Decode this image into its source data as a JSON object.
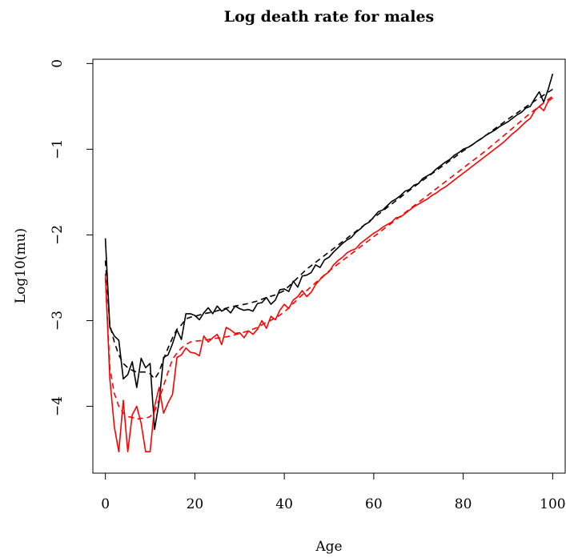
{
  "chart_data": {
    "type": "line",
    "title": "Log death rate for males",
    "xlabel": "Age",
    "ylabel": "Log10(mu)",
    "xlim": [
      -2.8,
      102.8
    ],
    "ylim": [
      -4.78,
      0.05
    ],
    "xticks": [
      0,
      20,
      40,
      60,
      80,
      100
    ],
    "yticks": [
      0,
      -1,
      -2,
      -3,
      -4
    ],
    "grid": false,
    "legend": "none",
    "series": [
      {
        "color": "#000000",
        "linestyle": "solid",
        "x": [
          0,
          1,
          2,
          3,
          4,
          5,
          6,
          7,
          8,
          9,
          10,
          11,
          12,
          13,
          14,
          15,
          16,
          17,
          18,
          19,
          20,
          21,
          22,
          23,
          24,
          25,
          26,
          27,
          28,
          29,
          30,
          31,
          32,
          33,
          34,
          35,
          36,
          37,
          38,
          39,
          40,
          41,
          42,
          43,
          44,
          45,
          46,
          47,
          48,
          49,
          50,
          51,
          52,
          53,
          54,
          55,
          56,
          57,
          58,
          59,
          60,
          61,
          62,
          63,
          64,
          65,
          66,
          67,
          68,
          69,
          70,
          71,
          72,
          73,
          74,
          75,
          76,
          77,
          78,
          79,
          80,
          81,
          82,
          83,
          84,
          85,
          86,
          87,
          88,
          89,
          90,
          91,
          92,
          93,
          94,
          95,
          96,
          97,
          98,
          99,
          100
        ],
        "y": [
          -2.04,
          -3.08,
          -3.18,
          -3.23,
          -3.68,
          -3.63,
          -3.48,
          -3.78,
          -3.44,
          -3.55,
          -3.5,
          -4.27,
          -3.95,
          -3.43,
          -3.4,
          -3.27,
          -3.11,
          -3.22,
          -2.92,
          -2.92,
          -2.94,
          -2.99,
          -2.91,
          -2.85,
          -2.92,
          -2.83,
          -2.89,
          -2.86,
          -2.91,
          -2.83,
          -2.86,
          -2.88,
          -2.87,
          -2.89,
          -2.8,
          -2.79,
          -2.73,
          -2.81,
          -2.76,
          -2.64,
          -2.63,
          -2.66,
          -2.54,
          -2.61,
          -2.48,
          -2.47,
          -2.44,
          -2.35,
          -2.38,
          -2.29,
          -2.26,
          -2.2,
          -2.15,
          -2.1,
          -2.06,
          -2.03,
          -1.97,
          -1.93,
          -1.88,
          -1.85,
          -1.79,
          -1.73,
          -1.71,
          -1.66,
          -1.61,
          -1.58,
          -1.54,
          -1.49,
          -1.47,
          -1.42,
          -1.4,
          -1.34,
          -1.31,
          -1.28,
          -1.23,
          -1.19,
          -1.15,
          -1.12,
          -1.07,
          -1.04,
          -1.0,
          -0.98,
          -0.95,
          -0.91,
          -0.88,
          -0.84,
          -0.81,
          -0.78,
          -0.74,
          -0.71,
          -0.68,
          -0.64,
          -0.6,
          -0.57,
          -0.52,
          -0.5,
          -0.41,
          -0.33,
          -0.45,
          -0.3,
          -0.12
        ]
      },
      {
        "color": "#000000",
        "linestyle": "dashed",
        "x": [
          0,
          1,
          2,
          3,
          4,
          5,
          6,
          7,
          8,
          9,
          10,
          11,
          12,
          13,
          14,
          15,
          16,
          17,
          18,
          19,
          20,
          22,
          24,
          26,
          28,
          30,
          32,
          34,
          36,
          38,
          40,
          45,
          50,
          55,
          60,
          65,
          70,
          75,
          80,
          85,
          90,
          95,
          100
        ],
        "y": [
          -2.3,
          -3.05,
          -3.25,
          -3.4,
          -3.5,
          -3.55,
          -3.58,
          -3.6,
          -3.6,
          -3.6,
          -3.62,
          -3.68,
          -3.6,
          -3.45,
          -3.32,
          -3.2,
          -3.1,
          -3.05,
          -2.98,
          -2.96,
          -2.95,
          -2.92,
          -2.9,
          -2.87,
          -2.84,
          -2.82,
          -2.8,
          -2.77,
          -2.73,
          -2.7,
          -2.65,
          -2.4,
          -2.2,
          -2.0,
          -1.8,
          -1.6,
          -1.4,
          -1.21,
          -1.02,
          -0.84,
          -0.65,
          -0.47,
          -0.3
        ]
      },
      {
        "color": "#ff0000",
        "linestyle": "solid",
        "x": [
          0,
          1,
          2,
          3,
          4,
          5,
          6,
          7,
          8,
          9,
          10,
          11,
          12,
          13,
          14,
          15,
          16,
          17,
          18,
          19,
          20,
          21,
          22,
          23,
          24,
          25,
          26,
          27,
          28,
          29,
          30,
          31,
          32,
          33,
          34,
          35,
          36,
          37,
          38,
          39,
          40,
          41,
          42,
          43,
          44,
          45,
          46,
          47,
          48,
          49,
          50,
          51,
          52,
          53,
          54,
          55,
          56,
          57,
          58,
          59,
          60,
          61,
          62,
          63,
          64,
          65,
          66,
          67,
          68,
          69,
          70,
          71,
          72,
          73,
          74,
          75,
          76,
          77,
          78,
          79,
          80,
          81,
          82,
          83,
          84,
          85,
          86,
          87,
          88,
          89,
          90,
          91,
          92,
          93,
          94,
          95,
          96,
          97,
          98,
          99,
          100
        ],
        "y": [
          -2.45,
          -3.68,
          -4.24,
          -4.53,
          -3.93,
          -4.53,
          -4.1,
          -4.0,
          -4.2,
          -4.53,
          -4.53,
          -4.0,
          -3.78,
          -4.08,
          -3.96,
          -3.86,
          -3.43,
          -3.4,
          -3.32,
          -3.37,
          -3.38,
          -3.41,
          -3.18,
          -3.25,
          -3.2,
          -3.16,
          -3.28,
          -3.08,
          -3.11,
          -3.15,
          -3.14,
          -3.2,
          -3.12,
          -3.16,
          -3.1,
          -3.0,
          -3.09,
          -2.95,
          -2.99,
          -2.88,
          -2.81,
          -2.86,
          -2.76,
          -2.72,
          -2.65,
          -2.72,
          -2.67,
          -2.58,
          -2.52,
          -2.47,
          -2.43,
          -2.35,
          -2.3,
          -2.26,
          -2.21,
          -2.18,
          -2.16,
          -2.1,
          -2.06,
          -2.02,
          -1.98,
          -1.95,
          -1.91,
          -1.88,
          -1.85,
          -1.8,
          -1.79,
          -1.75,
          -1.71,
          -1.67,
          -1.64,
          -1.61,
          -1.58,
          -1.54,
          -1.51,
          -1.47,
          -1.44,
          -1.4,
          -1.36,
          -1.32,
          -1.28,
          -1.24,
          -1.2,
          -1.16,
          -1.12,
          -1.08,
          -1.04,
          -1.0,
          -0.96,
          -0.92,
          -0.87,
          -0.82,
          -0.78,
          -0.73,
          -0.68,
          -0.64,
          -0.55,
          -0.5,
          -0.55,
          -0.44,
          -0.4
        ]
      },
      {
        "color": "#ff0000",
        "linestyle": "dashed",
        "x": [
          0,
          1,
          2,
          3,
          4,
          5,
          6,
          7,
          8,
          9,
          10,
          11,
          12,
          13,
          14,
          15,
          16,
          17,
          18,
          19,
          20,
          22,
          24,
          26,
          28,
          30,
          32,
          34,
          36,
          38,
          40,
          45,
          50,
          55,
          60,
          65,
          70,
          75,
          80,
          85,
          90,
          95,
          100
        ],
        "y": [
          -2.5,
          -3.55,
          -3.85,
          -4.0,
          -4.08,
          -4.12,
          -4.13,
          -4.15,
          -4.14,
          -4.14,
          -4.12,
          -4.06,
          -3.92,
          -3.76,
          -3.6,
          -3.45,
          -3.38,
          -3.32,
          -3.28,
          -3.25,
          -3.24,
          -3.23,
          -3.21,
          -3.2,
          -3.18,
          -3.15,
          -3.12,
          -3.08,
          -3.02,
          -2.97,
          -2.9,
          -2.65,
          -2.42,
          -2.22,
          -2.02,
          -1.82,
          -1.62,
          -1.42,
          -1.22,
          -1.02,
          -0.8,
          -0.58,
          -0.38
        ]
      }
    ]
  }
}
